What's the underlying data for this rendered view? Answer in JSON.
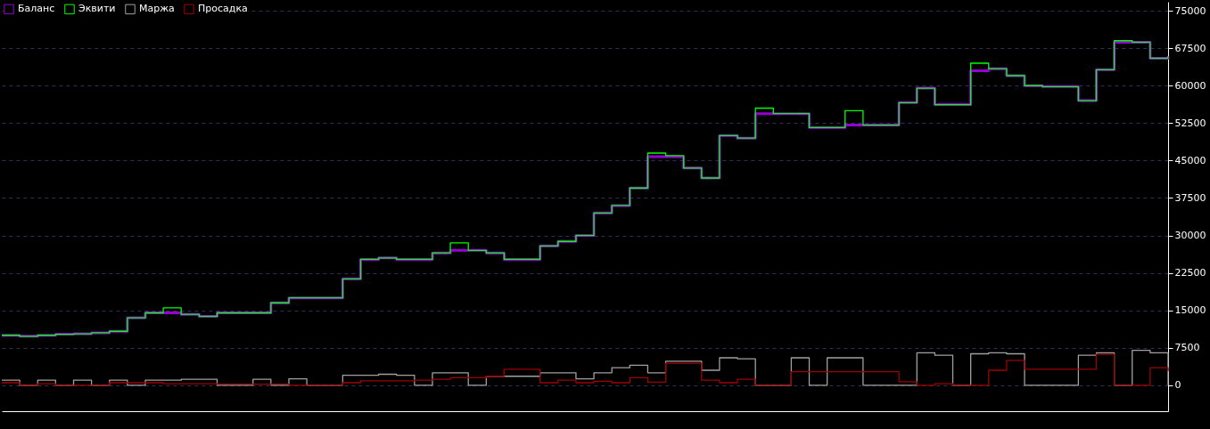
{
  "chart_data": {
    "type": "step",
    "categories": [
      null,
      null,
      null,
      null,
      null,
      null,
      null,
      null,
      null,
      null,
      null,
      null,
      null,
      null,
      null,
      null,
      null,
      null,
      null,
      null,
      null,
      null,
      null,
      null,
      null,
      null,
      null,
      null,
      null,
      null,
      null,
      null,
      null,
      null,
      null,
      null,
      null,
      null,
      null,
      null,
      null,
      null,
      null,
      null,
      null,
      null,
      null,
      null,
      null,
      null,
      null,
      null,
      null,
      null,
      null,
      null,
      null,
      null,
      null,
      null,
      null,
      null,
      null,
      null,
      null,
      null
    ],
    "series": [
      {
        "name": "Баланс",
        "color": "#9400d3",
        "values": [
          10000,
          9800,
          10000,
          10200,
          10300,
          10500,
          10800,
          13500,
          14500,
          14500,
          14200,
          13800,
          14500,
          14500,
          14500,
          16500,
          17500,
          17500,
          17500,
          21300,
          25200,
          25500,
          25200,
          25200,
          26500,
          27000,
          27000,
          26500,
          25200,
          25200,
          27900,
          28800,
          30000,
          34500,
          36000,
          39500,
          45800,
          45800,
          43500,
          41500,
          50000,
          49500,
          54400,
          54400,
          54400,
          51600,
          51600,
          52100,
          52100,
          52100,
          56600,
          59500,
          56200,
          56200,
          63000,
          63400,
          62000,
          60000,
          59800,
          59800,
          57000,
          63200,
          68700,
          68700,
          65500,
          65900
        ]
      },
      {
        "name": "Эквити",
        "color": "#00ff00",
        "values": [
          10000,
          9800,
          10000,
          10200,
          10300,
          10500,
          10800,
          13500,
          14500,
          15500,
          14200,
          13800,
          14500,
          14500,
          14500,
          16500,
          17500,
          17500,
          17500,
          21300,
          25200,
          25500,
          25200,
          25200,
          26500,
          28500,
          27000,
          26500,
          25200,
          25200,
          27900,
          28800,
          30000,
          34500,
          36000,
          39500,
          46500,
          46000,
          43500,
          41500,
          50000,
          49500,
          55500,
          54400,
          54400,
          51600,
          51600,
          55000,
          52100,
          52100,
          56600,
          59500,
          56200,
          56200,
          64500,
          63400,
          62000,
          60000,
          59800,
          59800,
          57000,
          63200,
          69000,
          68700,
          65500,
          65900
        ]
      },
      {
        "name": "Маржа",
        "color": "#a0a0a0",
        "values": [
          1000,
          0,
          1000,
          0,
          1000,
          0,
          1000,
          0,
          1000,
          1000,
          1200,
          1200,
          0,
          0,
          1200,
          0,
          1300,
          0,
          0,
          2000,
          2000,
          2200,
          2000,
          0,
          2500,
          2500,
          0,
          1800,
          1800,
          1800,
          2500,
          2500,
          1300,
          2500,
          3500,
          4000,
          2500,
          4800,
          4800,
          3000,
          5500,
          5300,
          0,
          0,
          5500,
          0,
          5500,
          5500,
          0,
          0,
          0,
          6500,
          6000,
          0,
          6300,
          6500,
          6300,
          0,
          0,
          0,
          6000,
          6500,
          0,
          7000,
          6500,
          0
        ]
      },
      {
        "name": "Просадка",
        "color": "#a00000",
        "values": [
          500,
          0,
          300,
          0,
          0,
          0,
          500,
          500,
          500,
          300,
          300,
          300,
          200,
          200,
          200,
          200,
          0,
          0,
          0,
          500,
          900,
          900,
          900,
          1000,
          1200,
          1500,
          1500,
          1800,
          3200,
          3200,
          500,
          1000,
          500,
          800,
          500,
          1500,
          600,
          4400,
          4400,
          1000,
          500,
          1200,
          0,
          0,
          2700,
          2700,
          2700,
          2700,
          2700,
          2700,
          700,
          0,
          300,
          0,
          0,
          3000,
          5000,
          3200,
          3200,
          3200,
          3200,
          6200,
          0,
          0,
          3500,
          2800
        ]
      }
    ],
    "ylim": [
      -5200,
      76800
    ],
    "yticks": [
      0,
      7500,
      15000,
      22500,
      30000,
      37500,
      45000,
      52500,
      60000,
      67500,
      75000
    ],
    "grid": "y",
    "legend": "top left"
  }
}
